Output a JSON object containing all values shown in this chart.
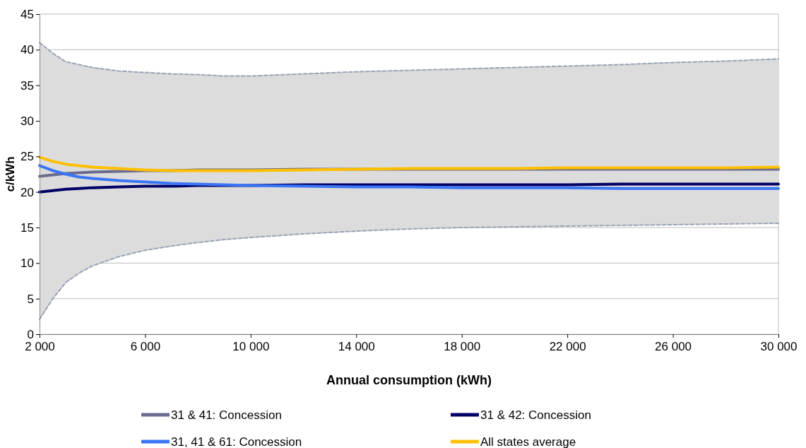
{
  "chart_data": {
    "type": "line",
    "xlabel": "Annual consumption (kWh)",
    "ylabel": "c/kWh",
    "x": [
      2000,
      2500,
      3000,
      3500,
      4000,
      5000,
      6000,
      7000,
      8000,
      9000,
      10000,
      12000,
      14000,
      16000,
      18000,
      20000,
      22000,
      24000,
      26000,
      28000,
      30000
    ],
    "xlim": [
      2000,
      30000
    ],
    "xticks": [
      {
        "value": 2000,
        "label": "2 000"
      },
      {
        "value": 6000,
        "label": "6 000"
      },
      {
        "value": 10000,
        "label": "10 000"
      },
      {
        "value": 14000,
        "label": "14 000"
      },
      {
        "value": 18000,
        "label": "18 000"
      },
      {
        "value": 22000,
        "label": "22 000"
      },
      {
        "value": 26000,
        "label": "26 000"
      },
      {
        "value": 30000,
        "label": "30 000"
      }
    ],
    "ylim": [
      0,
      45
    ],
    "yticks": [
      0,
      5,
      10,
      15,
      20,
      25,
      30,
      35,
      40,
      45
    ],
    "grid": "y",
    "legend": "bottom",
    "series": [
      {
        "type": "area",
        "color": "#dcdcdc",
        "values": [
          null,
          null,
          null,
          null,
          null,
          null,
          null,
          null,
          null,
          null,
          null,
          null,
          null,
          null,
          null,
          null,
          null,
          null,
          null,
          null,
          null
        ],
        "upper": [
          41,
          39.5,
          38.3,
          37.9,
          37.5,
          37.0,
          36.8,
          36.6,
          36.5,
          36.3,
          36.3,
          36.6,
          36.9,
          37.1,
          37.3,
          37.5,
          37.7,
          37.9,
          38.2,
          38.4,
          38.7
        ],
        "lower": [
          2.1,
          5,
          7.3,
          8.6,
          9.6,
          10.9,
          11.8,
          12.4,
          12.9,
          13.3,
          13.6,
          14.1,
          14.5,
          14.8,
          15.0,
          15.1,
          15.2,
          15.3,
          15.4,
          15.5,
          15.6
        ]
      },
      {
        "type": "line",
        "color": "#99a3b5",
        "line_style": "dashed",
        "values": [
          41,
          39.5,
          38.3,
          37.9,
          37.5,
          37.0,
          36.8,
          36.6,
          36.5,
          36.3,
          36.3,
          36.6,
          36.9,
          37.1,
          37.3,
          37.5,
          37.7,
          37.9,
          38.2,
          38.4,
          38.7
        ]
      },
      {
        "type": "line",
        "color": "#99a3b5",
        "line_style": "dashed",
        "values": [
          2.1,
          5,
          7.3,
          8.6,
          9.6,
          10.9,
          11.8,
          12.4,
          12.9,
          13.3,
          13.6,
          14.1,
          14.5,
          14.8,
          15.0,
          15.1,
          15.2,
          15.3,
          15.4,
          15.5,
          15.6
        ]
      },
      {
        "name": "31 & 41: Concession",
        "color": "#6b6b8e",
        "values": [
          22.2,
          22.4,
          22.6,
          22.7,
          22.8,
          22.9,
          23.0,
          23.0,
          23.1,
          23.1,
          23.1,
          23.2,
          23.2,
          23.2,
          23.2,
          23.2,
          23.2,
          23.2,
          23.2,
          23.2,
          23.2
        ]
      },
      {
        "name": "31 & 42: Concession",
        "color": "#000066",
        "values": [
          20.0,
          20.2,
          20.4,
          20.5,
          20.6,
          20.7,
          20.8,
          20.8,
          20.9,
          20.9,
          20.9,
          21.0,
          21.0,
          21.0,
          21.0,
          21.0,
          21.0,
          21.1,
          21.1,
          21.1,
          21.1
        ]
      },
      {
        "name": "31, 41 & 61: Concession",
        "color": "#3a75f5",
        "values": [
          23.7,
          23.0,
          22.5,
          22.1,
          21.9,
          21.6,
          21.4,
          21.2,
          21.1,
          21.0,
          20.9,
          20.8,
          20.7,
          20.7,
          20.6,
          20.6,
          20.6,
          20.5,
          20.5,
          20.5,
          20.5
        ]
      },
      {
        "name": "All states average",
        "color": "#ffc000",
        "values": [
          24.9,
          24.3,
          23.9,
          23.7,
          23.5,
          23.3,
          23.1,
          23.0,
          23.0,
          23.0,
          23.0,
          23.1,
          23.2,
          23.3,
          23.3,
          23.3,
          23.4,
          23.4,
          23.4,
          23.4,
          23.5
        ]
      }
    ]
  }
}
